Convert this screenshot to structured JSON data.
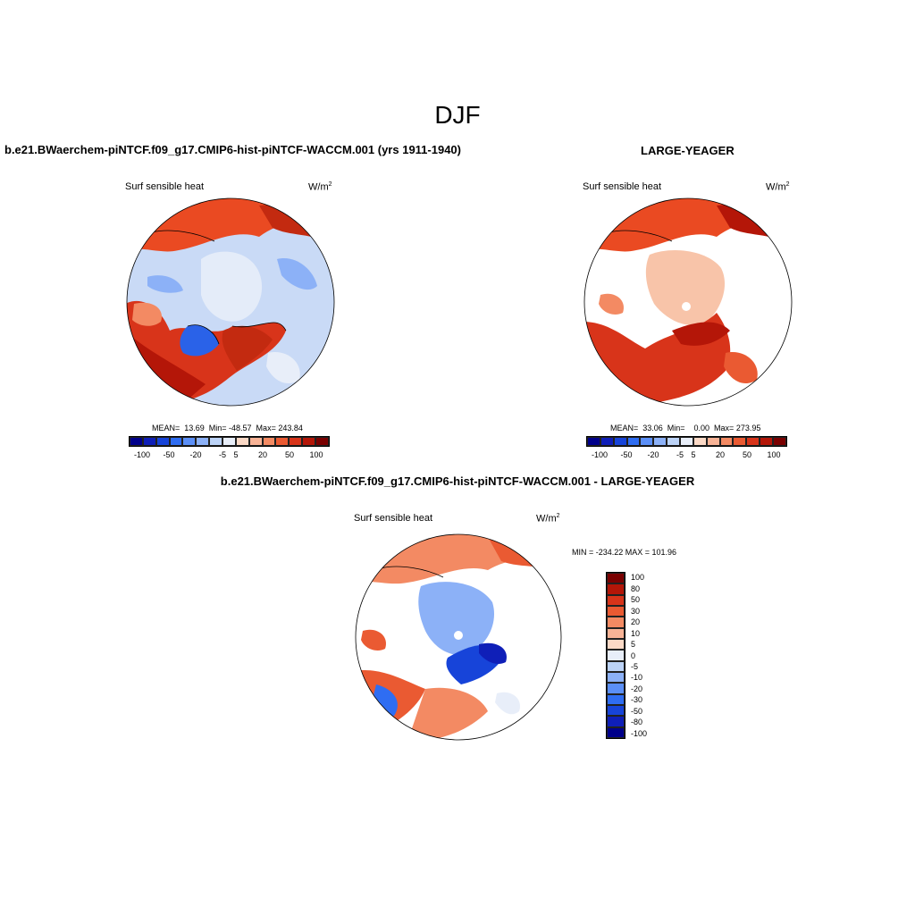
{
  "title": "DJF",
  "panels": {
    "case": {
      "title": "b.e21.BWaerchem-piNTCF.f09_g17.CMIP6-hist-piNTCF-WACCM.001 (yrs 1911-1940)",
      "variable": "Surf sensible heat",
      "units": "W/m",
      "units_sup": "2",
      "stats": "MEAN=  13.69  Min= -48.57  Max= 243.84"
    },
    "obs": {
      "title": "LARGE-YEAGER",
      "variable": "Surf sensible heat",
      "units": "W/m",
      "units_sup": "2",
      "stats": "MEAN=  33.06  Min=    0.00  Max= 273.95"
    },
    "diff": {
      "title": "b.e21.BWaerchem-piNTCF.f09_g17.CMIP6-hist-piNTCF-WACCM.001 - LARGE-YEAGER",
      "variable": "Surf sensible heat",
      "units": "W/m",
      "units_sup": "2",
      "stats": "MIN = -234.22 MAX = 101.96"
    }
  },
  "colorbar_horizontal": {
    "colors": [
      "#00008a",
      "#0f1fb8",
      "#1744d9",
      "#2f6df2",
      "#5b8ff7",
      "#8cb1f7",
      "#bcd3f7",
      "#e8eef9",
      "#fbd9c6",
      "#f8b396",
      "#f38a63",
      "#ea5a32",
      "#d8341a",
      "#b41608",
      "#7a0000"
    ],
    "labels": [
      "-100",
      "-50",
      "-20",
      "-5",
      "5",
      "20",
      "50",
      "100"
    ]
  },
  "colorbar_vertical": {
    "colors": [
      "#7a0000",
      "#b41608",
      "#d8341a",
      "#ea5a32",
      "#f38a63",
      "#f8b396",
      "#fbd9c6",
      "#e8eef9",
      "#bcd3f7",
      "#8cb1f7",
      "#5b8ff7",
      "#2f6df2",
      "#1744d9",
      "#0f1fb8",
      "#00008a"
    ],
    "labels": [
      "100",
      "80",
      "50",
      "30",
      "20",
      "10",
      "5",
      "0",
      "-5",
      "-10",
      "-20",
      "-30",
      "-50",
      "-80",
      "-100"
    ]
  },
  "colors": {
    "land_warm": "#ea4a22",
    "land_hot": "#c32a10",
    "ocean_cool": "#bcd3f7",
    "ocean_mid": "#8cb1f7",
    "ice_pale": "#e4ecf9",
    "strong_blue": "#2a62e8",
    "pale_warm": "#f8c4a9"
  }
}
